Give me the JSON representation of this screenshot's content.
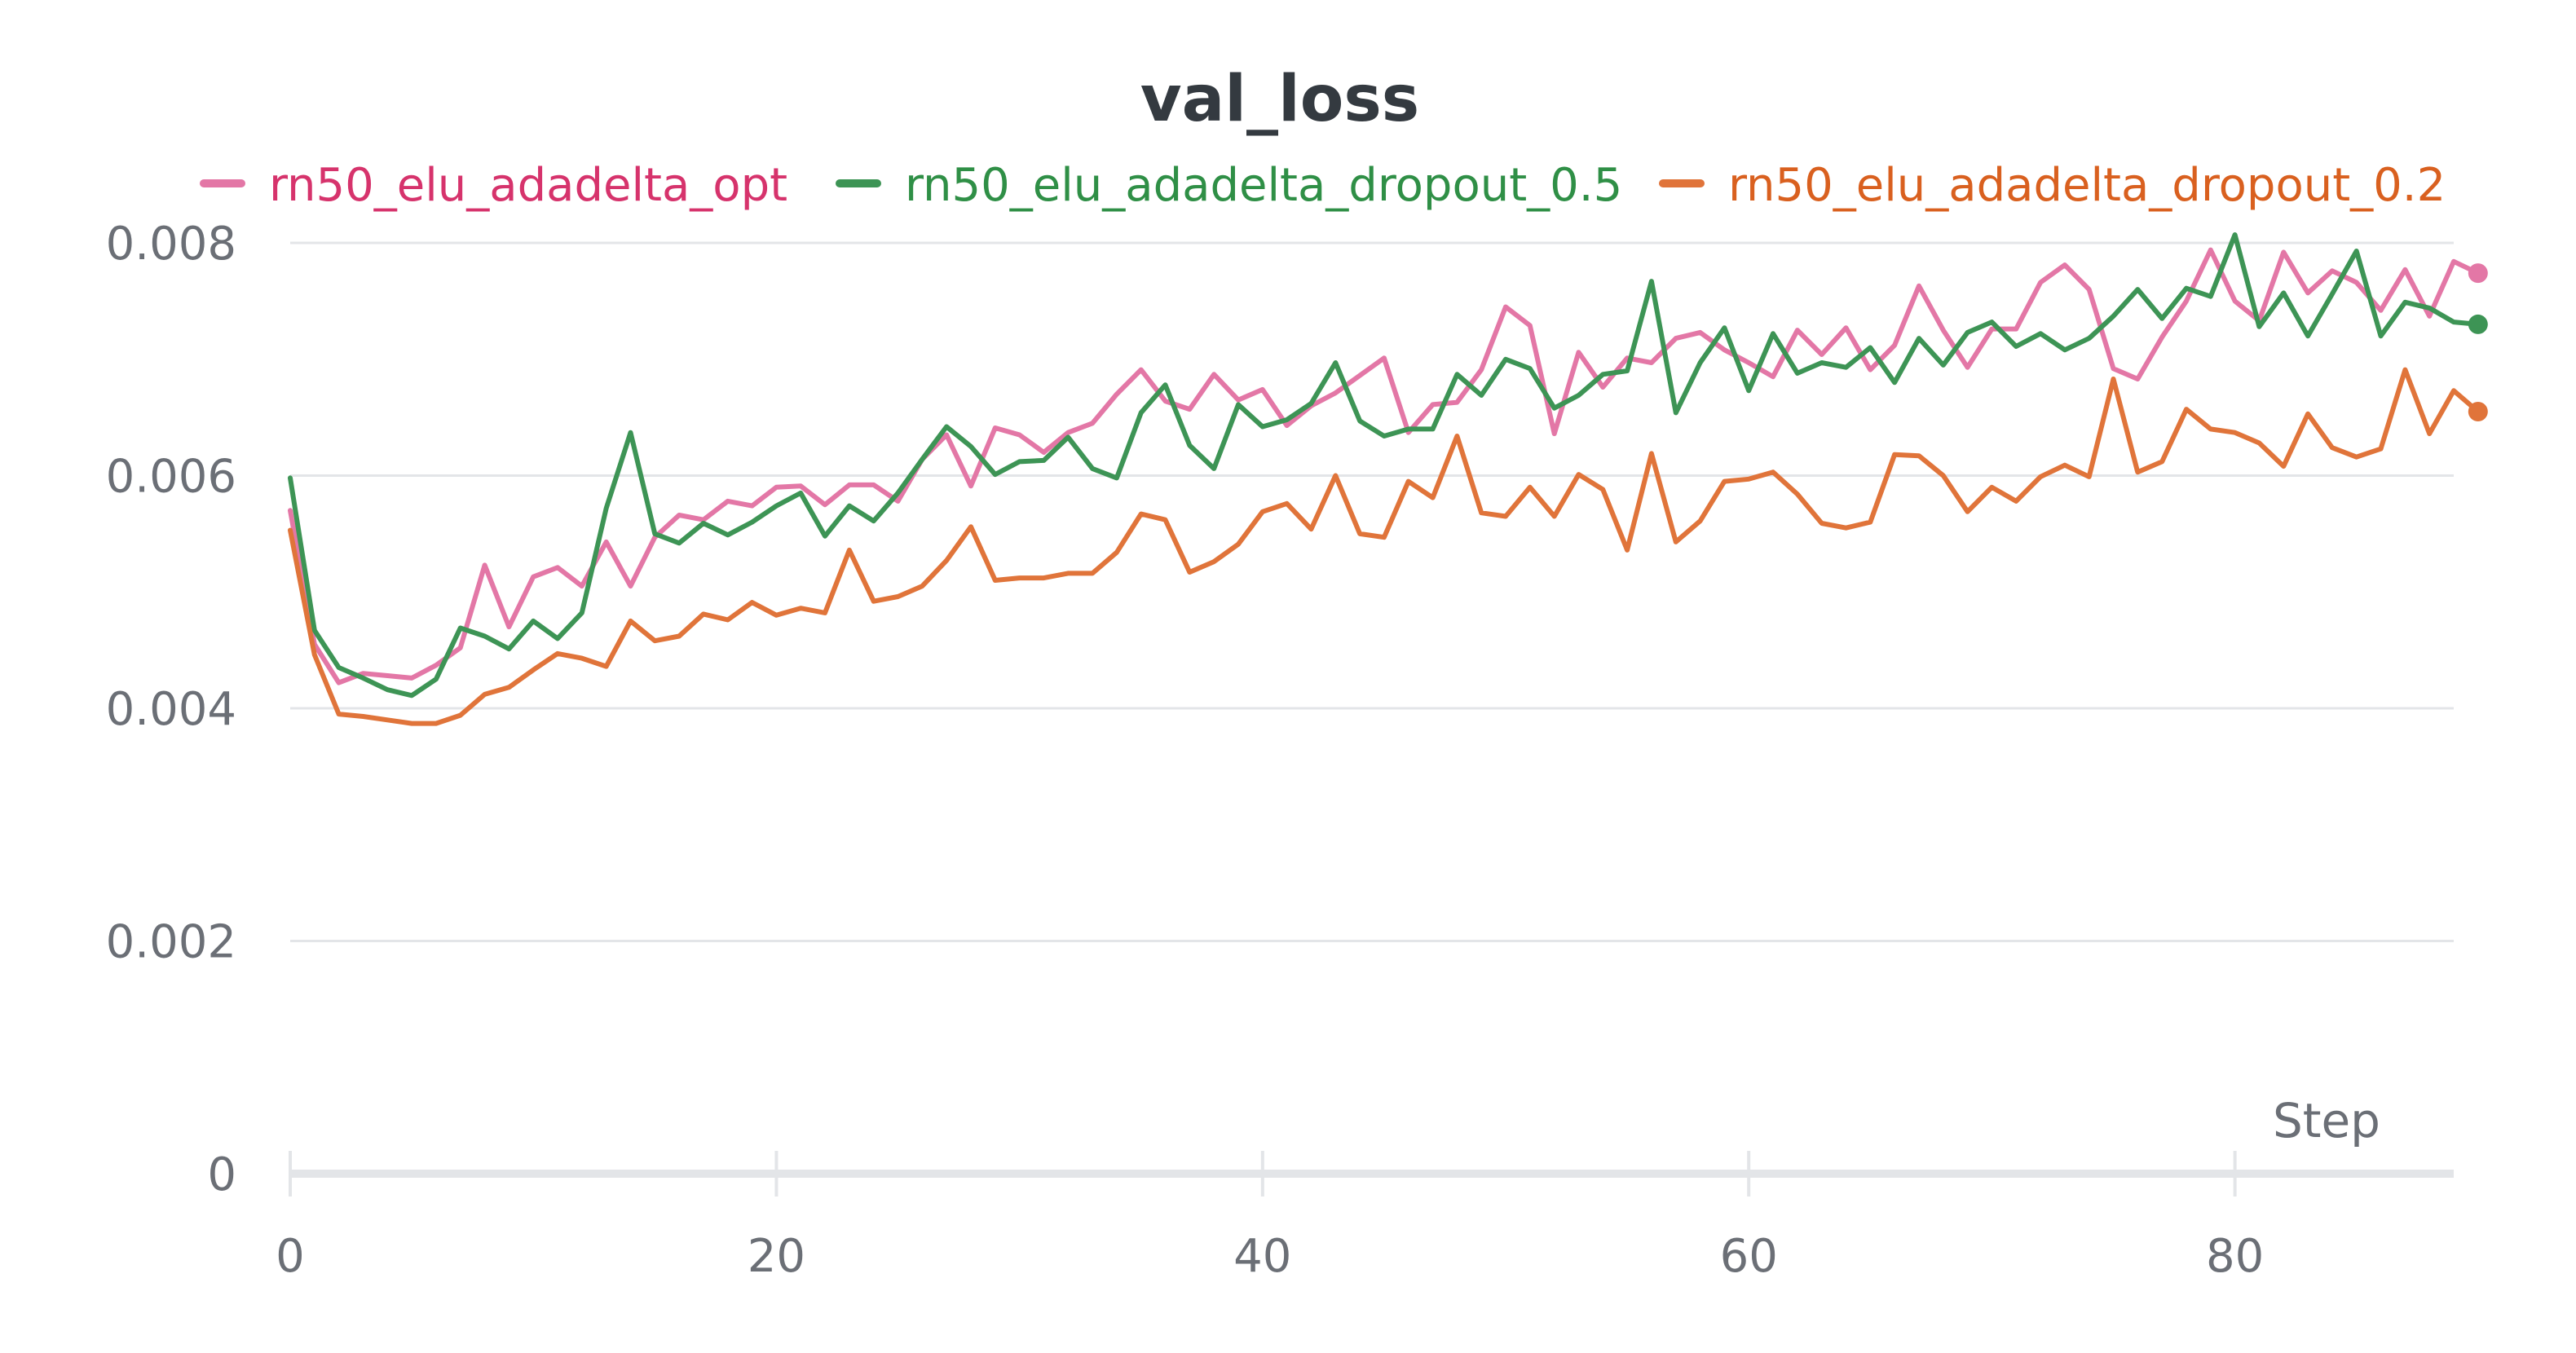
{
  "chart_data": {
    "type": "line",
    "title": "val_loss",
    "xlabel": "Step",
    "ylabel": "",
    "xlim": [
      0,
      89
    ],
    "ylim": [
      0,
      0.008
    ],
    "x_ticks": [
      0,
      20,
      40,
      60,
      80
    ],
    "x_tick_labels": [
      "0",
      "20",
      "40",
      "60",
      "80"
    ],
    "y_ticks": [
      0,
      0.002,
      0.004,
      0.006,
      0.008
    ],
    "y_tick_labels": [
      "0",
      "0.002",
      "0.004",
      "0.006",
      "0.008"
    ],
    "grid": true,
    "legend_position": "top",
    "series": [
      {
        "name": "rn50_elu_adadelta_opt",
        "color": "#e377a6",
        "label_color": "#d6336c",
        "values": [
          0.0057,
          0.00455,
          0.00422,
          0.0043,
          0.00428,
          0.00426,
          0.00437,
          0.00452,
          0.00523,
          0.0047,
          0.00513,
          0.00521,
          0.00505,
          0.00543,
          0.00505,
          0.00547,
          0.00566,
          0.00562,
          0.00578,
          0.00574,
          0.0059,
          0.00591,
          0.00575,
          0.00592,
          0.00592,
          0.00578,
          0.00614,
          0.00635,
          0.00591,
          0.00641,
          0.00635,
          0.0062,
          0.00637,
          0.00645,
          0.0067,
          0.00691,
          0.00664,
          0.00657,
          0.00687,
          0.00665,
          0.00674,
          0.00643,
          0.0066,
          0.00671,
          0.00686,
          0.00701,
          0.00637,
          0.00661,
          0.00663,
          0.00691,
          0.00745,
          0.00729,
          0.00636,
          0.00706,
          0.00676,
          0.00701,
          0.00697,
          0.00718,
          0.00723,
          0.00708,
          0.00697,
          0.00685,
          0.00725,
          0.00704,
          0.00727,
          0.00691,
          0.00712,
          0.00763,
          0.00725,
          0.00693,
          0.00726,
          0.00726,
          0.00766,
          0.00781,
          0.0076,
          0.00692,
          0.00683,
          0.00719,
          0.0075,
          0.00794,
          0.0075,
          0.00733,
          0.00792,
          0.00757,
          0.00776,
          0.00766,
          0.00742,
          0.00777,
          0.00737,
          0.00784,
          0.00774
        ]
      },
      {
        "name": "rn50_elu_adadelta_dropout_0.5",
        "color": "#3d9455",
        "label_color": "#2f8f46",
        "values": [
          0.00598,
          0.00467,
          0.00435,
          0.00426,
          0.00416,
          0.00411,
          0.00425,
          0.00469,
          0.00462,
          0.00451,
          0.00475,
          0.0046,
          0.00482,
          0.00572,
          0.00637,
          0.0055,
          0.00542,
          0.00559,
          0.00549,
          0.0056,
          0.00574,
          0.00585,
          0.00548,
          0.00574,
          0.00561,
          0.00585,
          0.00614,
          0.00642,
          0.00625,
          0.00601,
          0.00612,
          0.00613,
          0.00633,
          0.00606,
          0.00598,
          0.00654,
          0.00678,
          0.00626,
          0.00606,
          0.00661,
          0.00642,
          0.00648,
          0.00662,
          0.00697,
          0.00647,
          0.00634,
          0.0064,
          0.0064,
          0.00687,
          0.00669,
          0.007,
          0.00692,
          0.00658,
          0.00669,
          0.00687,
          0.0069,
          0.00767,
          0.00654,
          0.00697,
          0.00727,
          0.00673,
          0.00722,
          0.00688,
          0.00697,
          0.00693,
          0.0071,
          0.0068,
          0.00718,
          0.00695,
          0.00723,
          0.00732,
          0.00711,
          0.00722,
          0.00708,
          0.00718,
          0.00737,
          0.0076,
          0.00735,
          0.00761,
          0.00754,
          0.00807,
          0.00728,
          0.00757,
          0.0072,
          0.00756,
          0.00793,
          0.0072,
          0.00749,
          0.00744,
          0.00732,
          0.0073
        ]
      },
      {
        "name": "rn50_elu_adadelta_dropout_0.2",
        "color": "#e0743a",
        "label_color": "#d9601f",
        "values": [
          0.00553,
          0.00446,
          0.00395,
          0.00393,
          0.0039,
          0.00387,
          0.00387,
          0.00394,
          0.00412,
          0.00418,
          0.00433,
          0.00447,
          0.00443,
          0.00436,
          0.00475,
          0.00458,
          0.00462,
          0.00481,
          0.00476,
          0.00491,
          0.0048,
          0.00486,
          0.00482,
          0.00536,
          0.00492,
          0.00496,
          0.00505,
          0.00527,
          0.00556,
          0.0051,
          0.00512,
          0.00512,
          0.00516,
          0.00516,
          0.00534,
          0.00567,
          0.00562,
          0.00517,
          0.00526,
          0.00541,
          0.00569,
          0.00576,
          0.00554,
          0.006,
          0.0055,
          0.00547,
          0.00595,
          0.00581,
          0.00634,
          0.00568,
          0.00565,
          0.0059,
          0.00565,
          0.00601,
          0.00588,
          0.00536,
          0.00619,
          0.00543,
          0.00561,
          0.00595,
          0.00597,
          0.00603,
          0.00584,
          0.00559,
          0.00555,
          0.0056,
          0.00618,
          0.00617,
          0.006,
          0.00569,
          0.0059,
          0.00578,
          0.00599,
          0.00609,
          0.00599,
          0.00683,
          0.00603,
          0.00612,
          0.00657,
          0.0064,
          0.00637,
          0.00628,
          0.00608,
          0.00653,
          0.00624,
          0.00616,
          0.00623,
          0.00691,
          0.00636,
          0.00673,
          0.00655
        ]
      }
    ]
  }
}
